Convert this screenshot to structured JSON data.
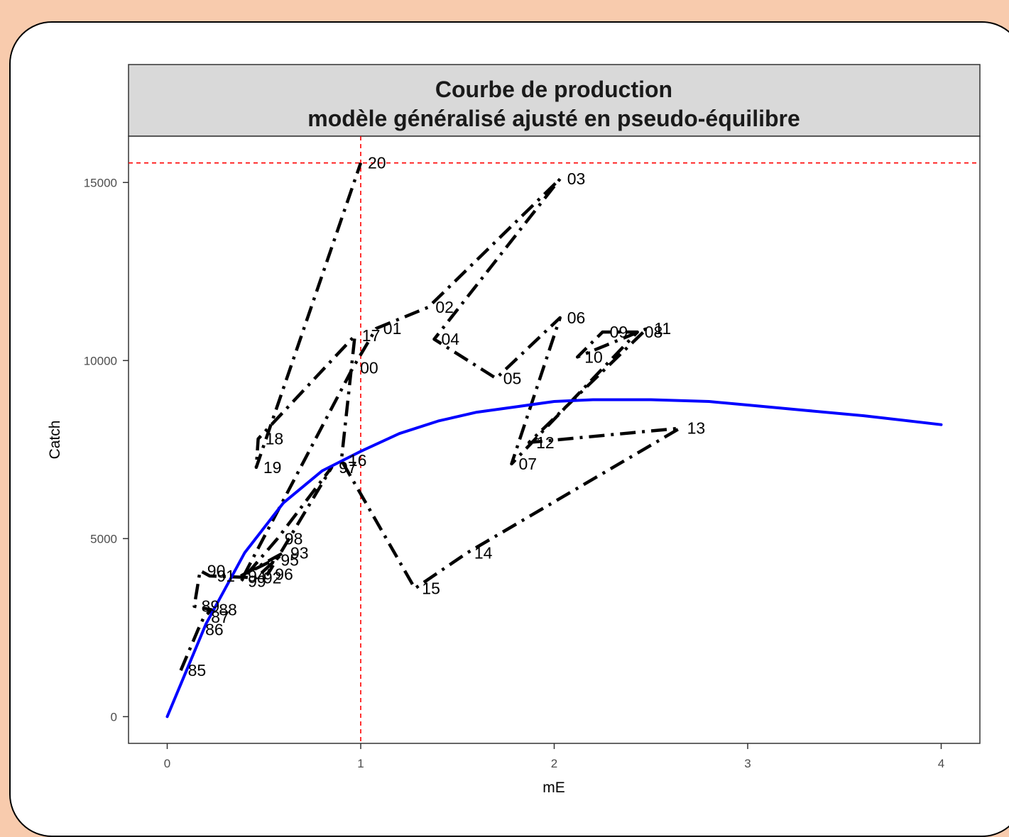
{
  "chart_data": {
    "type": "line",
    "title": "Courbe de production\nmodèle généralisé ajusté en pseudo-équilibre",
    "title_lines": [
      "Courbe de production",
      "modèle généralisé ajusté en pseudo-équilibre"
    ],
    "xlabel": "mE",
    "ylabel": "Catch",
    "xlim": [
      -0.2,
      4.2
    ],
    "ylim": [
      -750,
      16300
    ],
    "x_ticks": [
      0,
      1,
      2,
      3,
      4
    ],
    "x_tick_labels": [
      "0",
      "1",
      "2",
      "3",
      "4"
    ],
    "y_ticks": [
      0,
      5000,
      10000,
      15000
    ],
    "y_tick_labels": [
      "0",
      "5000",
      "10000",
      "15000"
    ],
    "grid": false,
    "reference_lines": {
      "x": 1,
      "y": 15550,
      "color": "#ff0000",
      "style": "dashed"
    },
    "series": [
      {
        "color": "#000000",
        "style": "dashed",
        "points": [
          {
            "label": "85",
            "x": 0.07,
            "y": 1300
          },
          {
            "label": "86",
            "x": 0.16,
            "y": 2450
          },
          {
            "label": "87",
            "x": 0.19,
            "y": 2800
          },
          {
            "label": "88",
            "x": 0.23,
            "y": 3000
          },
          {
            "label": "89",
            "x": 0.14,
            "y": 3100
          },
          {
            "label": "90",
            "x": 0.17,
            "y": 4100
          },
          {
            "label": "91",
            "x": 0.22,
            "y": 3950
          },
          {
            "label": "92",
            "x": 0.46,
            "y": 3900
          },
          {
            "label": "93",
            "x": 0.6,
            "y": 4600
          },
          {
            "label": "94",
            "x": 0.38,
            "y": 3950
          },
          {
            "label": "95",
            "x": 0.55,
            "y": 4400
          },
          {
            "label": "96",
            "x": 0.52,
            "y": 4000
          },
          {
            "label": "97",
            "x": 0.85,
            "y": 7000
          },
          {
            "label": "98",
            "x": 0.57,
            "y": 5000
          },
          {
            "label": "99",
            "x": 0.38,
            "y": 3800
          },
          {
            "label": "00",
            "x": 0.96,
            "y": 9800
          },
          {
            "label": "01",
            "x": 1.08,
            "y": 10900
          },
          {
            "label": "02",
            "x": 1.35,
            "y": 11500
          },
          {
            "label": "03",
            "x": 2.03,
            "y": 15100
          },
          {
            "label": "04",
            "x": 1.38,
            "y": 10600
          },
          {
            "label": "05",
            "x": 1.7,
            "y": 9500
          },
          {
            "label": "06",
            "x": 2.03,
            "y": 11200
          },
          {
            "label": "07",
            "x": 1.78,
            "y": 7100
          },
          {
            "label": "08",
            "x": 2.43,
            "y": 10800
          },
          {
            "label": "09",
            "x": 2.25,
            "y": 10800
          },
          {
            "label": "10",
            "x": 2.12,
            "y": 10100
          },
          {
            "label": "11",
            "x": 2.48,
            "y": 10900
          },
          {
            "label": "12",
            "x": 1.87,
            "y": 7700
          },
          {
            "label": "13",
            "x": 2.65,
            "y": 8100
          },
          {
            "label": "14",
            "x": 1.55,
            "y": 4600
          },
          {
            "label": "15",
            "x": 1.28,
            "y": 3600
          },
          {
            "label": "16",
            "x": 0.9,
            "y": 7200
          },
          {
            "label": "17",
            "x": 0.97,
            "y": 10700
          },
          {
            "label": "18",
            "x": 0.47,
            "y": 7800
          },
          {
            "label": "19",
            "x": 0.46,
            "y": 7000
          },
          {
            "label": "20",
            "x": 1.0,
            "y": 15550
          }
        ]
      },
      {
        "color": "#0000ff",
        "style": "solid",
        "points": [
          {
            "x": 0.0,
            "y": 0
          },
          {
            "x": 0.2,
            "y": 2600
          },
          {
            "x": 0.4,
            "y": 4600
          },
          {
            "x": 0.6,
            "y": 6000
          },
          {
            "x": 0.8,
            "y": 6900
          },
          {
            "x": 1.0,
            "y": 7450
          },
          {
            "x": 1.2,
            "y": 7950
          },
          {
            "x": 1.4,
            "y": 8300
          },
          {
            "x": 1.6,
            "y": 8550
          },
          {
            "x": 1.8,
            "y": 8700
          },
          {
            "x": 2.0,
            "y": 8850
          },
          {
            "x": 2.2,
            "y": 8900
          },
          {
            "x": 2.5,
            "y": 8900
          },
          {
            "x": 2.8,
            "y": 8850
          },
          {
            "x": 3.0,
            "y": 8750
          },
          {
            "x": 3.3,
            "y": 8600
          },
          {
            "x": 3.6,
            "y": 8450
          },
          {
            "x": 4.0,
            "y": 8200
          }
        ]
      }
    ]
  }
}
